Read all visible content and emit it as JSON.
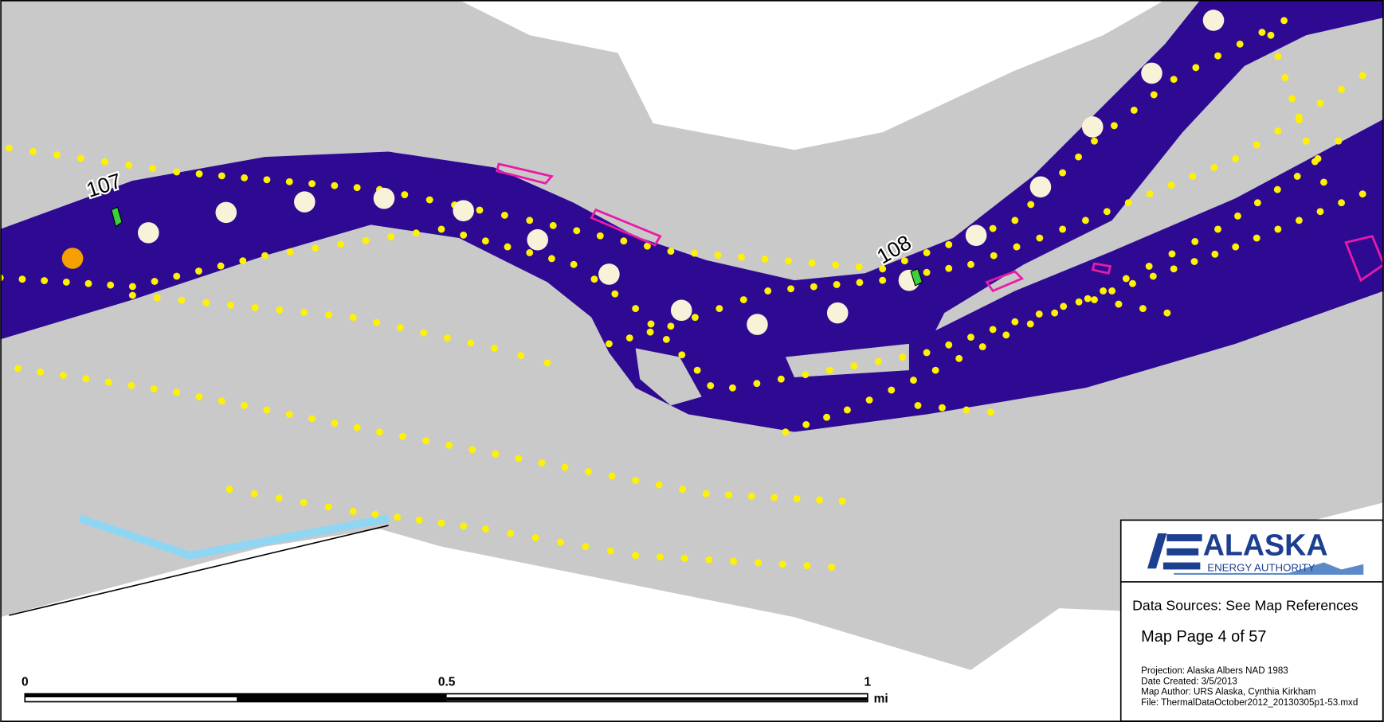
{
  "map": {
    "labels": [
      "107",
      "108"
    ],
    "scale_bar": {
      "labels": [
        "0",
        "0.5",
        "1"
      ],
      "unit": "mi"
    },
    "panel": {
      "logo": {
        "name": "ALASKA",
        "subtitle": "ENERGY AUTHORITY"
      },
      "data_sources": "Data Sources: See Map References",
      "page": "Map Page 4 of 57",
      "metadata": [
        "Projection: Alaska Albers NAD 1983",
        "Date Created: 3/5/2013",
        "Map Author: URS Alaska, Cynthia Kirkham",
        "File: ThermalDataOctober2012_20130305p1-53.mxd"
      ]
    }
  }
}
